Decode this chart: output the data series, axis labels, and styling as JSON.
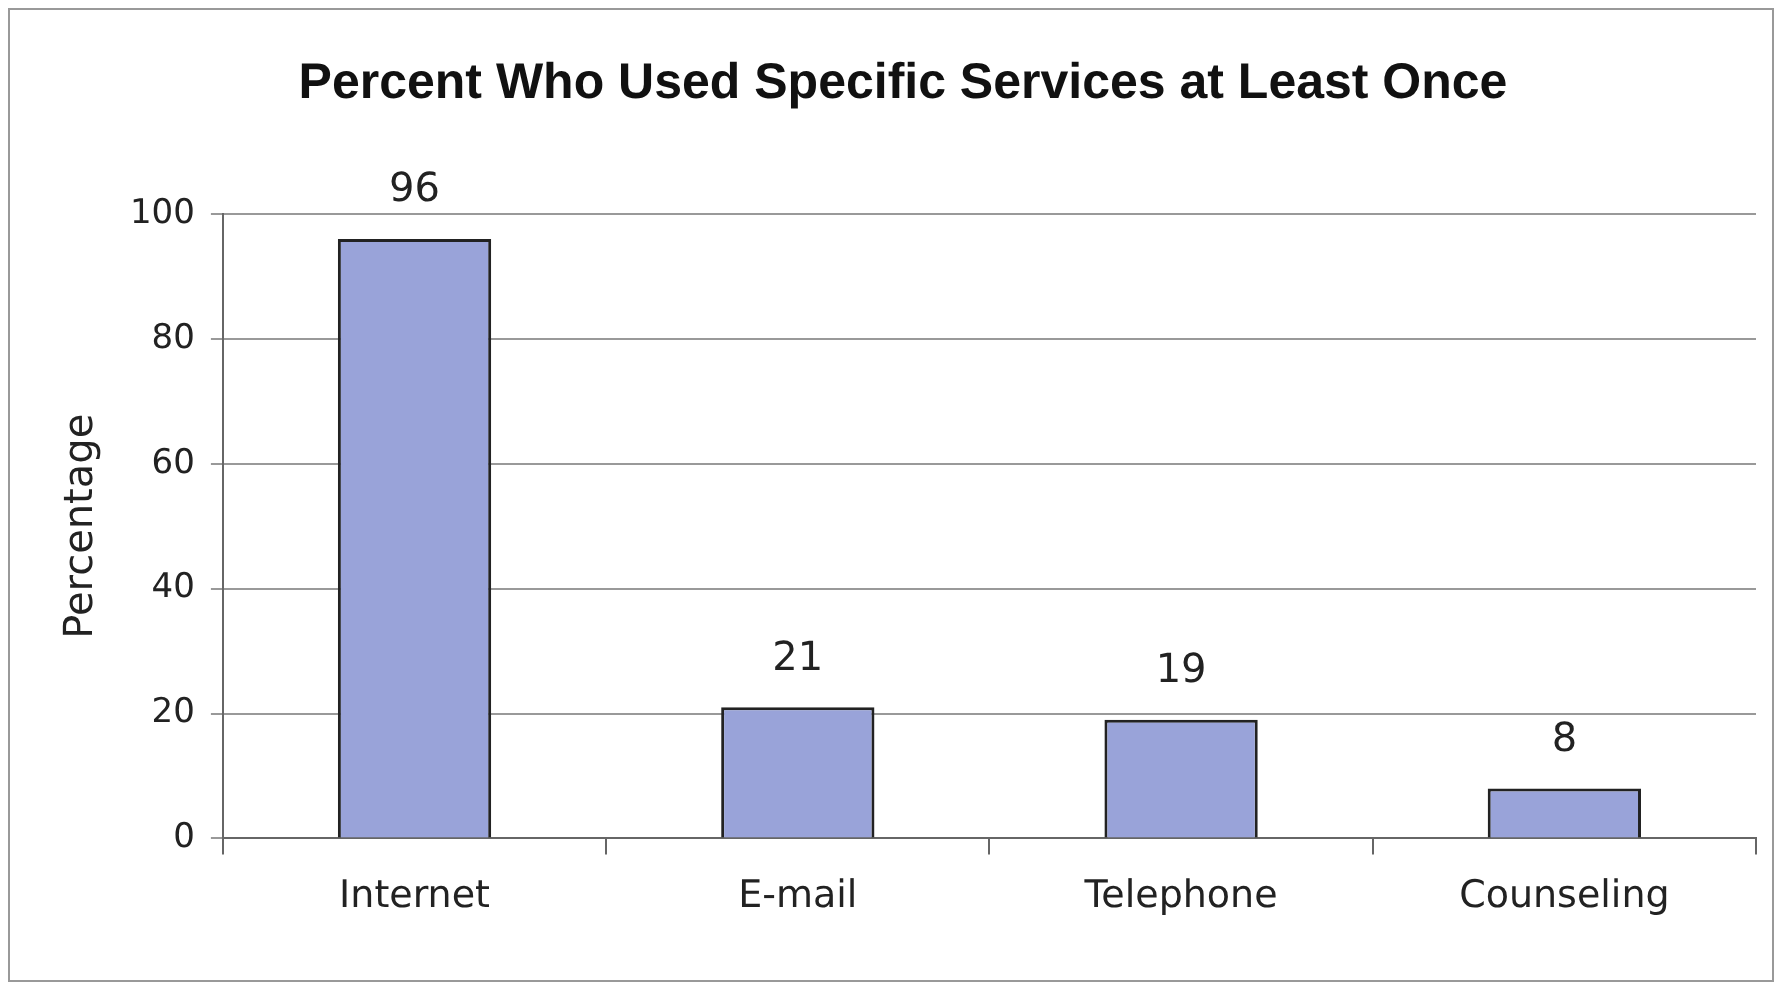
{
  "chart_data": {
    "type": "bar",
    "title": "Percent Who Used Specific Services at Least Once",
    "ylabel": "Percentage",
    "categories": [
      "Internet",
      "E-mail",
      "Telephone",
      "Counseling"
    ],
    "values": [
      96,
      21,
      19,
      8
    ],
    "color": "#99a3d9",
    "ylim": [
      0,
      100
    ],
    "yticks": [
      0,
      20,
      40,
      60,
      80,
      100
    ],
    "grid": "y",
    "data_labels": true,
    "legend": false
  }
}
